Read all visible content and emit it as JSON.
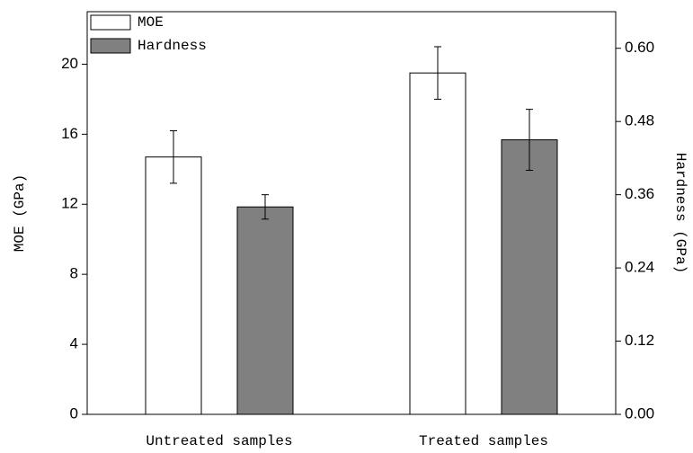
{
  "chart_data": {
    "type": "bar",
    "categories": [
      "Untreated samples",
      "Treated samples"
    ],
    "series": [
      {
        "name": "MOE",
        "color": "#ffffff",
        "values": [
          14.7,
          19.5
        ],
        "errors": [
          1.5,
          1.5
        ]
      },
      {
        "name": "Hardness",
        "color": "#808080",
        "values": [
          0.34,
          0.45
        ],
        "errors": [
          0.02,
          0.05
        ],
        "axis": "y2"
      }
    ],
    "ylabel": "MOE (GPa)",
    "y2label": "Hardness (GPa)",
    "ylim": [
      0,
      23
    ],
    "yticks": [
      0,
      4,
      8,
      12,
      16,
      20
    ],
    "y2lim": [
      0,
      0.66
    ],
    "y2ticks": [
      {
        "value": 0,
        "label": "0.00"
      },
      0.12,
      0.24,
      0.36,
      0.48,
      {
        "value": 0.6,
        "label": "0.60"
      }
    ],
    "legend": "upper-left"
  }
}
